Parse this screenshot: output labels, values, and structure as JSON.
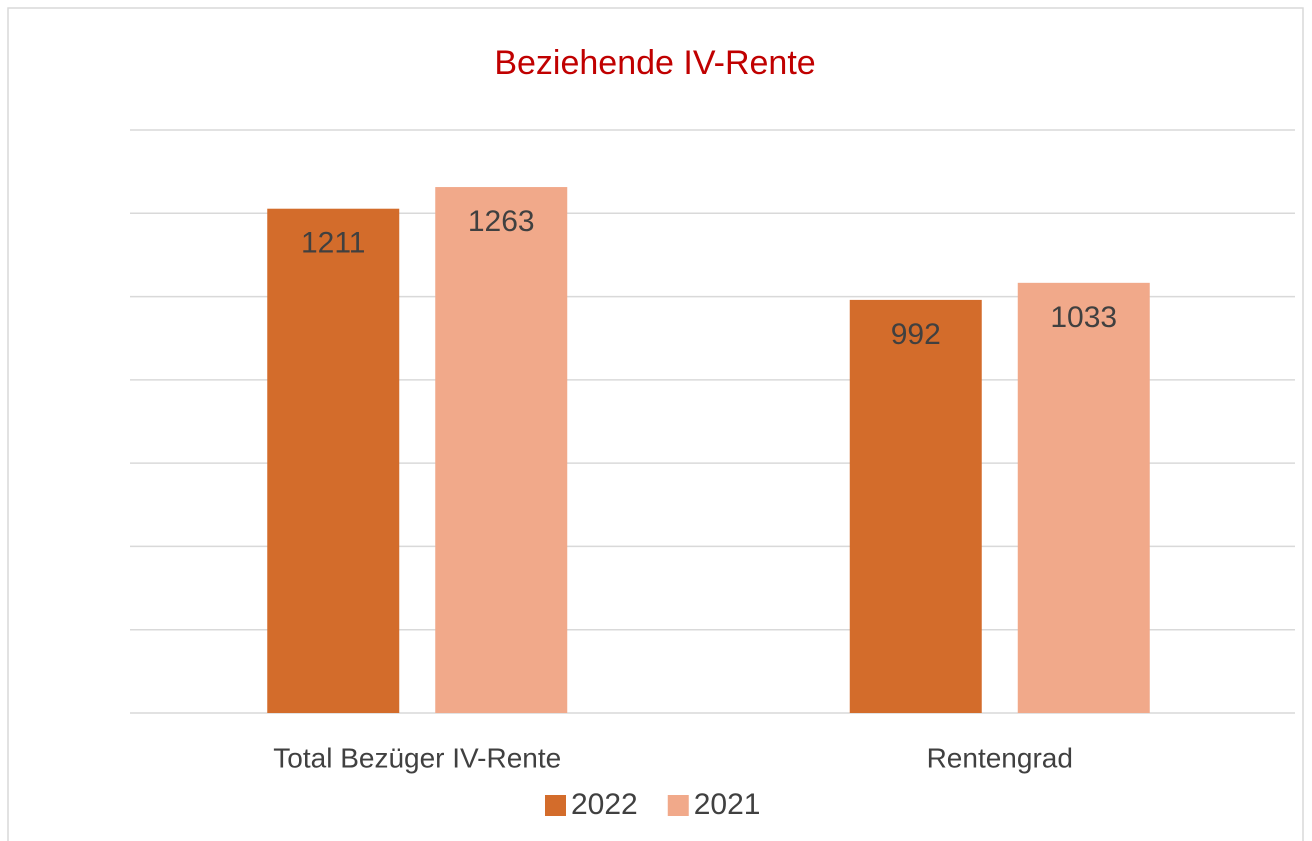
{
  "chart_data": {
    "type": "bar",
    "title": "Beziehende IV-Rente",
    "categories": [
      "Total Bezüger IV-Rente",
      "Rentengrad"
    ],
    "series": [
      {
        "name": "2022",
        "color": "#d36c2b",
        "values": [
          1211,
          992
        ]
      },
      {
        "name": "2021",
        "color": "#f1a98a",
        "values": [
          1263,
          1033
        ]
      }
    ],
    "ylim": [
      0,
      1400
    ],
    "yticks": [
      0,
      200,
      400,
      600,
      800,
      1000,
      1200,
      1400
    ],
    "grid": true,
    "legend": "bottom"
  }
}
